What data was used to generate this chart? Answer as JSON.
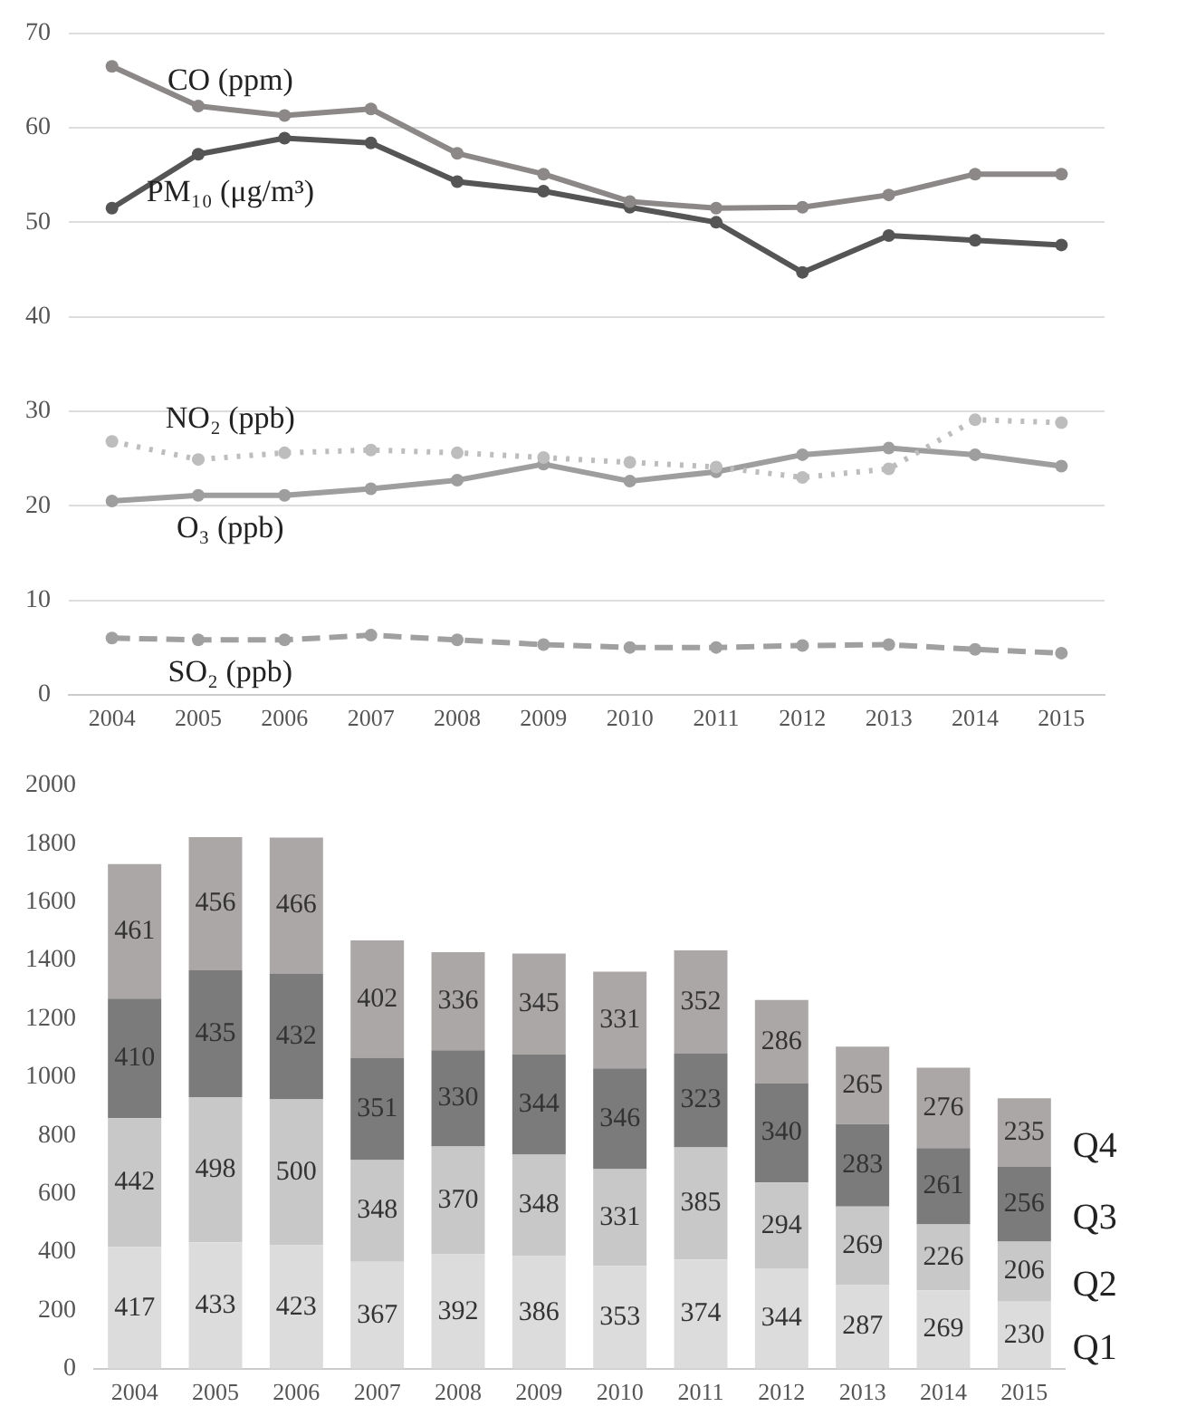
{
  "chart_data": [
    {
      "type": "line",
      "categories": [
        "2004",
        "2005",
        "2006",
        "2007",
        "2008",
        "2009",
        "2010",
        "2011",
        "2012",
        "2013",
        "2014",
        "2015"
      ],
      "series": [
        {
          "name": "CO (ppm)",
          "color": "#8c8888",
          "values": [
            66.5,
            62.3,
            61.3,
            62,
            57.3,
            55.1,
            52.2,
            51.5,
            51.6,
            52.9,
            55.1,
            55.1
          ]
        },
        {
          "name": "PM₁₀ (μg/m³)",
          "color": "#555555",
          "values": [
            51.5,
            57.2,
            58.9,
            58.4,
            54.3,
            53.3,
            51.6,
            50,
            44.7,
            48.6,
            48.1,
            47.6
          ]
        },
        {
          "name": "NO₂ (ppb)",
          "color": "#bdbdbd",
          "line_style": "dotted",
          "values": [
            26.8,
            24.9,
            25.6,
            25.9,
            25.6,
            25.1,
            24.6,
            24.1,
            23,
            23.9,
            29.1,
            28.8
          ]
        },
        {
          "name": "O₃ (ppb)",
          "color": "#9e9e9e",
          "values": [
            20.5,
            21.1,
            21.1,
            21.8,
            22.7,
            24.4,
            22.6,
            23.6,
            25.4,
            26.1,
            25.4,
            24.2
          ]
        },
        {
          "name": "SO₂ (ppb)",
          "color": "#a0a0a0",
          "line_style": "dashed",
          "values": [
            6,
            5.8,
            5.8,
            6.3,
            5.8,
            5.3,
            5,
            5,
            5.2,
            5.3,
            4.8,
            4.4
          ]
        }
      ],
      "ylim": [
        0,
        70
      ],
      "yticks": [
        0,
        10,
        20,
        30,
        40,
        50,
        60,
        70
      ],
      "grid": "y",
      "legend": false,
      "marker": "circle"
    },
    {
      "type": "bar",
      "stacked": true,
      "categories": [
        "2004",
        "2005",
        "2006",
        "2007",
        "2008",
        "2009",
        "2010",
        "2011",
        "2012",
        "2013",
        "2014",
        "2015"
      ],
      "series": [
        {
          "name": "Q1",
          "color": "#dcdcdc",
          "values": [
            417,
            433,
            423,
            367,
            392,
            386,
            353,
            374,
            344,
            287,
            269,
            230
          ]
        },
        {
          "name": "Q2",
          "color": "#c8c8c8",
          "values": [
            442,
            498,
            500,
            348,
            370,
            348,
            331,
            385,
            294,
            269,
            226,
            206
          ]
        },
        {
          "name": "Q3",
          "color": "#7b7b7b",
          "values": [
            410,
            435,
            432,
            351,
            330,
            344,
            346,
            323,
            340,
            283,
            261,
            256
          ]
        },
        {
          "name": "Q4",
          "color": "#aca7a7",
          "values": [
            461,
            456,
            466,
            402,
            336,
            345,
            331,
            352,
            286,
            265,
            276,
            235
          ]
        }
      ],
      "ylim": [
        0,
        2000
      ],
      "yticks": [
        0,
        200,
        400,
        600,
        800,
        1000,
        1200,
        1400,
        1600,
        1800,
        2000
      ],
      "grid": false,
      "legend": false,
      "data_labels": true
    }
  ]
}
